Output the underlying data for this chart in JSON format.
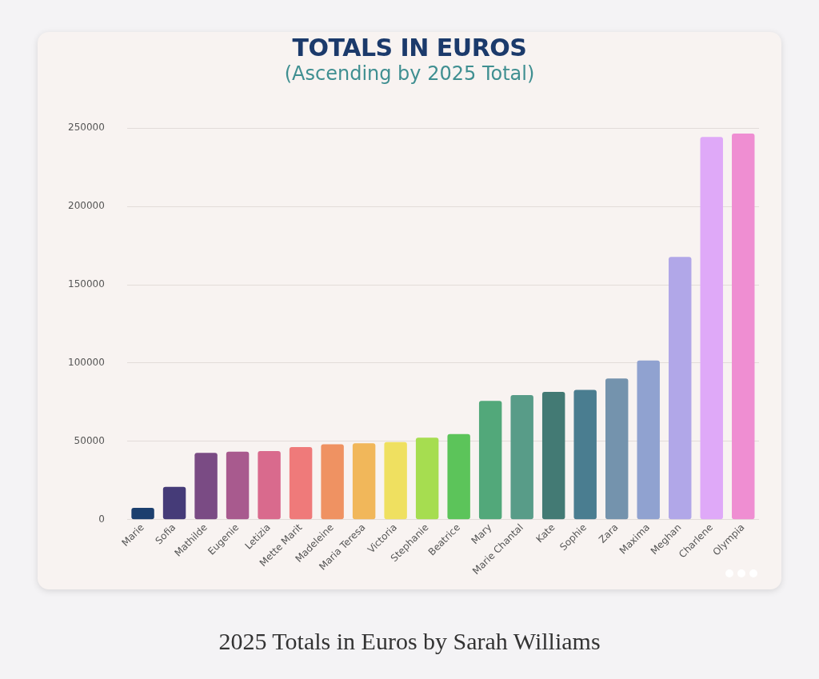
{
  "chart_data": {
    "type": "bar",
    "title": "TOTALS IN EUROS",
    "subtitle": "(Ascending by 2025 Total)",
    "categories": [
      "Marie",
      "Sofia",
      "Mathilde",
      "Eugenie",
      "Letizia",
      "Mette Marit",
      "Madeleine",
      "Maria Teresa",
      "Victoria",
      "Stephanie",
      "Beatrice",
      "Mary",
      "Marie Chantal",
      "Kate",
      "Sophie",
      "Zara",
      "Maxima",
      "Meghan",
      "Charlene",
      "Olympia"
    ],
    "values": [
      7500,
      21000,
      42700,
      43400,
      43800,
      46300,
      48200,
      48800,
      49600,
      52300,
      54600,
      75900,
      79600,
      81600,
      82800,
      90100,
      101600,
      167700,
      244300,
      246500
    ],
    "colors": [
      "#1c3f6e",
      "#453b78",
      "#7a4b84",
      "#a85a8e",
      "#d96a8d",
      "#ef7a7a",
      "#ef9262",
      "#f1b75a",
      "#efe060",
      "#a6dd50",
      "#5cc45a",
      "#52a87a",
      "#589c88",
      "#437a74",
      "#4a7d90",
      "#7493ad",
      "#90a2d0",
      "#b1a7e8",
      "#dfa9f8",
      "#ef8ed2"
    ],
    "ylim": [
      0,
      250000
    ],
    "yticks": [
      0,
      50000,
      100000,
      150000,
      200000,
      250000
    ],
    "grid": "y",
    "legend": false,
    "annotations": [
      "2025 Totals in Euros by Sarah Williams"
    ]
  }
}
